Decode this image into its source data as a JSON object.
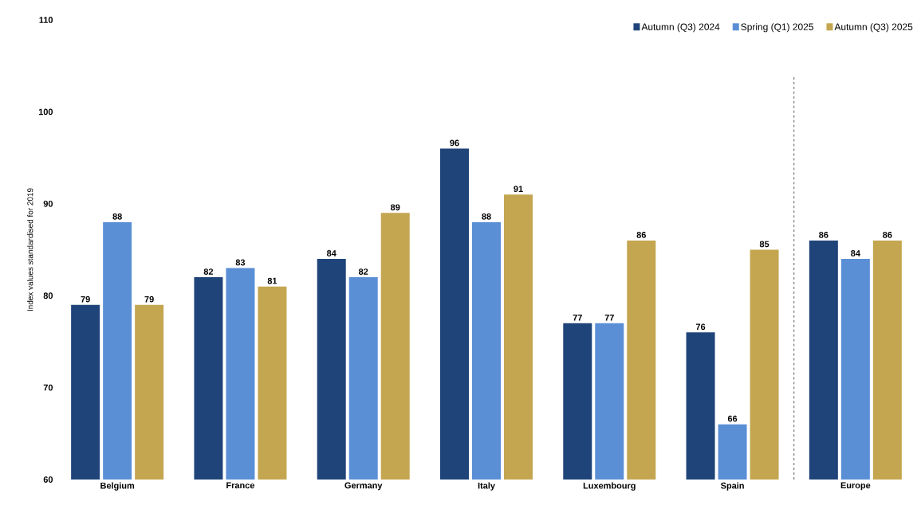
{
  "chart_data": {
    "type": "bar",
    "ylabel": "Index values standardised for 2019",
    "categories": [
      "Belgium",
      "France",
      "Germany",
      "Italy",
      "Luxembourg",
      "Spain",
      "Europe"
    ],
    "series": [
      {
        "name": "Autumn (Q3) 2024",
        "color": "#1f4479",
        "values": [
          79,
          82,
          84,
          96,
          77,
          76,
          86
        ]
      },
      {
        "name": "Spring (Q1) 2025",
        "color": "#5a8fd6",
        "values": [
          88,
          83,
          82,
          88,
          77,
          66,
          84
        ]
      },
      {
        "name": "Autumn (Q3) 2025",
        "color": "#c4a651",
        "values": [
          79,
          81,
          89,
          91,
          86,
          85,
          86
        ]
      }
    ],
    "ylim": [
      60,
      110
    ],
    "yticks": [
      60,
      70,
      80,
      90,
      100,
      110
    ],
    "data_labels": true,
    "legend": "top right",
    "grid": false
  }
}
